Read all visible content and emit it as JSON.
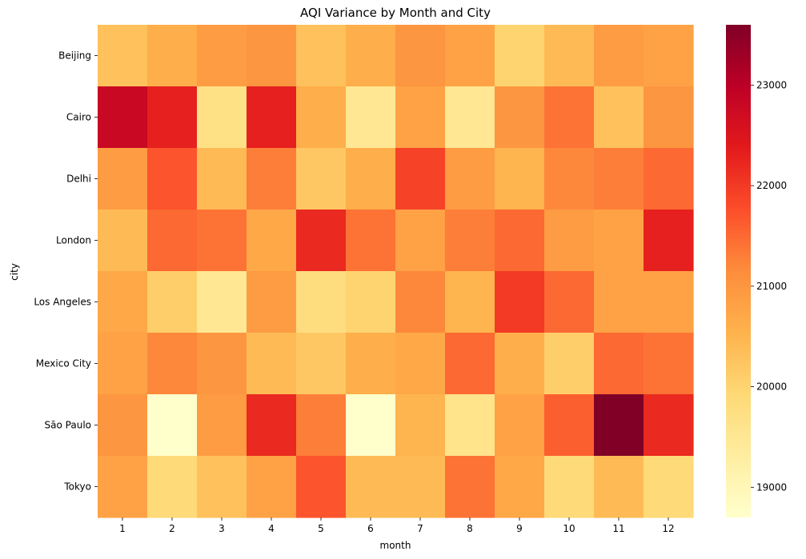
{
  "chart_data": {
    "type": "heatmap",
    "title": "AQI Variance by Month and City",
    "xlabel": "month",
    "ylabel": "city",
    "x": [
      "1",
      "2",
      "3",
      "4",
      "5",
      "6",
      "7",
      "8",
      "9",
      "10",
      "11",
      "12"
    ],
    "y": [
      "Beijing",
      "Cairo",
      "Delhi",
      "London",
      "Los Angeles",
      "Mexico City",
      "São Paulo",
      "Tokyo"
    ],
    "values": [
      [
        20300,
        20600,
        20900,
        21000,
        20300,
        20600,
        21000,
        20800,
        20000,
        20400,
        20900,
        20800
      ],
      [
        22800,
        22300,
        19700,
        22300,
        20600,
        19500,
        20800,
        19500,
        21000,
        21400,
        20300,
        21000
      ],
      [
        20900,
        21700,
        20400,
        21300,
        20200,
        20600,
        21900,
        20900,
        20500,
        21200,
        21300,
        21500
      ],
      [
        20400,
        21500,
        21400,
        20700,
        22200,
        21400,
        20800,
        21300,
        21500,
        20900,
        20800,
        22300
      ],
      [
        20700,
        20100,
        19500,
        20900,
        19800,
        20000,
        21200,
        20500,
        22000,
        21500,
        20800,
        20800
      ],
      [
        20800,
        21200,
        21000,
        20400,
        20200,
        20600,
        20700,
        21500,
        20600,
        20100,
        21500,
        21400
      ],
      [
        21000,
        18700,
        20900,
        22200,
        21300,
        18700,
        20500,
        19600,
        20800,
        21600,
        23600,
        22200
      ],
      [
        20800,
        19900,
        20300,
        20800,
        21700,
        20400,
        20400,
        21400,
        20700,
        19900,
        20400,
        19900
      ]
    ],
    "colorbar": {
      "vmin": 18700,
      "vmax": 23600,
      "ticks": [
        "19000",
        "20000",
        "21000",
        "22000",
        "23000"
      ],
      "colormap": "YlOrRd"
    },
    "grid": false,
    "legend": "colorbar-right"
  }
}
